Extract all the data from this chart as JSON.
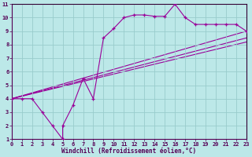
{
  "xlabel": "Windchill (Refroidissement éolien,°C)",
  "bg_color": "#bce8e8",
  "grid_color": "#99cccc",
  "line_color": "#990099",
  "xlim": [
    0,
    23
  ],
  "ylim": [
    1,
    11
  ],
  "xticks": [
    0,
    1,
    2,
    3,
    4,
    5,
    6,
    7,
    8,
    9,
    10,
    11,
    12,
    13,
    14,
    15,
    16,
    17,
    18,
    19,
    20,
    21,
    22,
    23
  ],
  "yticks": [
    1,
    2,
    3,
    4,
    5,
    6,
    7,
    8,
    9,
    10,
    11
  ],
  "main_x": [
    0,
    1,
    2,
    3,
    4,
    5,
    5,
    6,
    7,
    8,
    9,
    10,
    11,
    12,
    13,
    14,
    15,
    16,
    17,
    18,
    19,
    20,
    21,
    22,
    23
  ],
  "main_y": [
    4,
    4,
    4,
    3,
    2,
    1,
    2,
    3.5,
    5.5,
    4,
    8.5,
    9.2,
    10,
    10.2,
    10.2,
    10.1,
    10.1,
    11,
    10,
    9.5,
    9.5,
    9.5,
    9.5,
    9.5,
    9
  ],
  "trend_lines": [
    {
      "x0": 0,
      "y0": 4,
      "x1": 23,
      "y1": 9.0
    },
    {
      "x0": 0,
      "y0": 4,
      "x1": 23,
      "y1": 8.5
    },
    {
      "x0": 0,
      "y0": 4,
      "x1": 23,
      "y1": 8.2
    }
  ]
}
